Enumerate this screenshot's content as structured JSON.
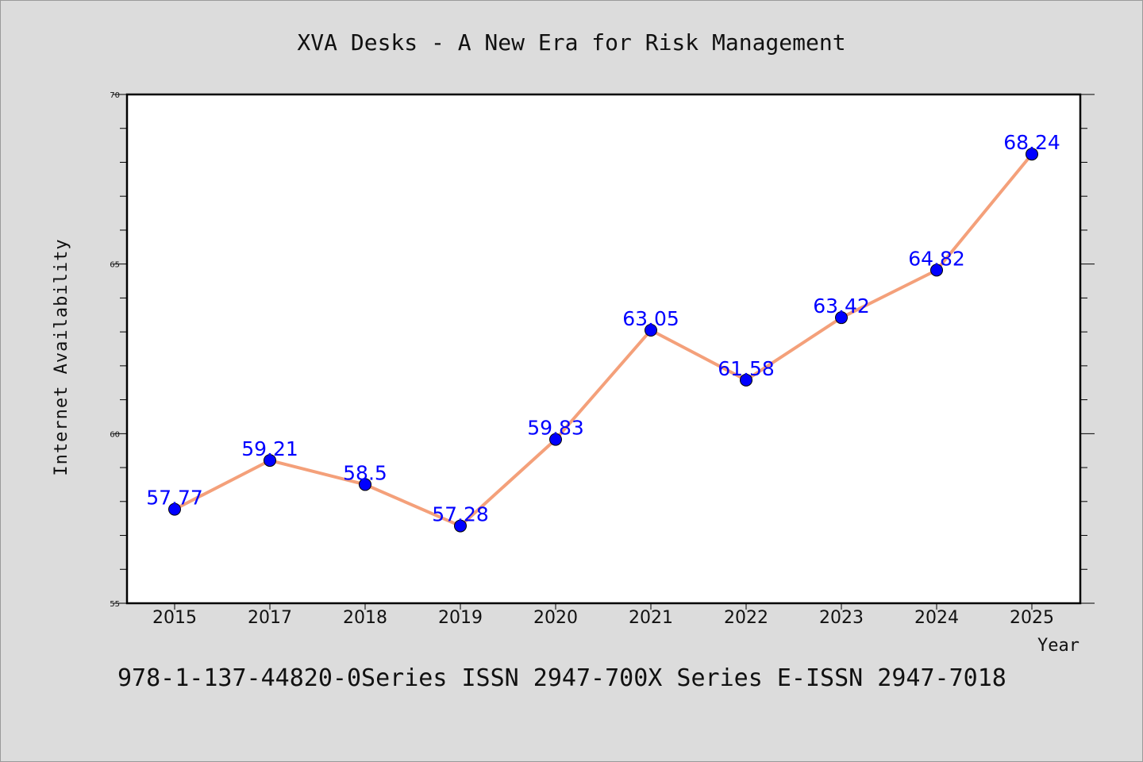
{
  "caption": "978-1-137-44820-0Series ISSN 2947-700X Series E-ISSN 2947-7018",
  "colors": {
    "background": "#dcdcdc",
    "plot_area": "#ffffff",
    "line": "#f4a07a",
    "marker": "#0000ff",
    "data_label": "#0000ff"
  },
  "chart_data": {
    "type": "line",
    "title": "XVA Desks - A New Era for Risk Management",
    "xlabel": "Year",
    "ylabel": "Internet Availability",
    "categories": [
      "2015",
      "2017",
      "2018",
      "2019",
      "2020",
      "2021",
      "2022",
      "2023",
      "2024",
      "2025"
    ],
    "series": [
      {
        "values": [
          57.77,
          59.21,
          58.5,
          57.28,
          59.83,
          63.05,
          61.58,
          63.42,
          64.82,
          68.24
        ],
        "labels": [
          "57.77",
          "59.21",
          "58.5",
          "57.28",
          "59.83",
          "63.05",
          "61.58",
          "63.42",
          "64.82",
          "68.24"
        ]
      }
    ],
    "ylim": [
      55,
      70
    ],
    "yticks": [
      55,
      60,
      65,
      70
    ],
    "y_minor_step": 1,
    "grid": false,
    "legend": "none",
    "markers": true
  }
}
